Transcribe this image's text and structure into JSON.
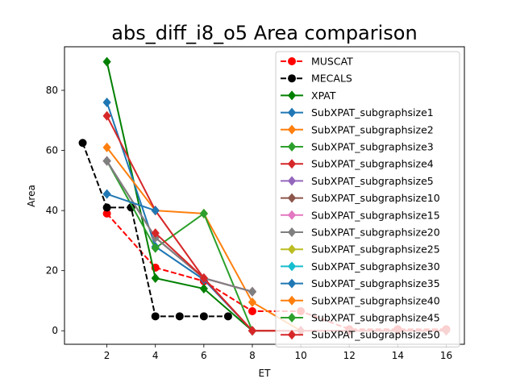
{
  "chart_data": {
    "type": "line",
    "title": "abs_diff_i8_o5 Area comparison",
    "xlabel": "ET",
    "ylabel": "Area",
    "xlim": [
      0.25,
      16.75
    ],
    "ylim": [
      -4.5,
      94.5
    ],
    "xticks": [
      2,
      4,
      6,
      8,
      10,
      12,
      14,
      16
    ],
    "yticks": [
      0,
      20,
      40,
      60,
      80
    ],
    "grid": false,
    "legend_position": "upper right",
    "series": [
      {
        "name": "MUSCAT",
        "color": "#ff0000",
        "dash": "dashed",
        "marker": "circle",
        "x": [
          2,
          4,
          6,
          8,
          10,
          12,
          14,
          16
        ],
        "y": [
          39,
          21,
          16.5,
          6.5,
          6.5,
          0.5,
          0.5,
          0.5
        ]
      },
      {
        "name": "MECALS",
        "color": "#000000",
        "dash": "dashed",
        "marker": "circle",
        "x": [
          1,
          2,
          3,
          4,
          5,
          6,
          7
        ],
        "y": [
          62.5,
          41,
          41,
          4.8,
          4.8,
          4.8,
          4.8
        ]
      },
      {
        "name": "XPAT",
        "color": "#008000",
        "dash": "solid",
        "marker": "diamond",
        "x": [
          2,
          4,
          6,
          8
        ],
        "y": [
          89.5,
          17.5,
          14,
          0
        ]
      },
      {
        "name": "SubXPAT_subgraphsize1",
        "color": "#1f77b4",
        "dash": "solid",
        "marker": "diamond",
        "x": [
          2,
          4,
          6,
          8
        ],
        "y": [
          76,
          28,
          17,
          0
        ]
      },
      {
        "name": "SubXPAT_subgraphsize2",
        "color": "#ff7f0e",
        "dash": "solid",
        "marker": "diamond",
        "x": [
          2,
          4,
          6,
          8,
          10
        ],
        "y": [
          61,
          40,
          39,
          9.5,
          0
        ]
      },
      {
        "name": "SubXPAT_subgraphsize3",
        "color": "#2ca02c",
        "dash": "solid",
        "marker": "diamond",
        "x": [
          2,
          4,
          6,
          8,
          10
        ],
        "y": [
          56.5,
          27.5,
          39,
          0,
          0
        ]
      },
      {
        "name": "SubXPAT_subgraphsize4",
        "color": "#d62728",
        "dash": "solid",
        "marker": "diamond",
        "x": [
          2,
          4,
          6,
          8,
          10,
          12,
          14,
          16
        ],
        "y": [
          71.5,
          40,
          17.5,
          0,
          0,
          0,
          0,
          0
        ]
      },
      {
        "name": "SubXPAT_subgraphsize5",
        "color": "#9467bd",
        "dash": "solid",
        "marker": "diamond",
        "x": [
          2,
          4,
          6,
          8
        ],
        "y": [
          56.5,
          31,
          17.5,
          13
        ]
      },
      {
        "name": "SubXPAT_subgraphsize10",
        "color": "#8c564b",
        "dash": "solid",
        "marker": "diamond",
        "x": [
          2,
          4,
          6,
          8
        ],
        "y": [
          56.5,
          31,
          17.5,
          13
        ]
      },
      {
        "name": "SubXPAT_subgraphsize15",
        "color": "#e377c2",
        "dash": "solid",
        "marker": "diamond",
        "x": [
          2,
          4,
          6,
          8
        ],
        "y": [
          56.5,
          31,
          17.5,
          13
        ]
      },
      {
        "name": "SubXPAT_subgraphsize20",
        "color": "#7f7f7f",
        "dash": "solid",
        "marker": "diamond",
        "x": [
          2,
          4,
          6,
          8
        ],
        "y": [
          56.5,
          31,
          17.5,
          13
        ]
      },
      {
        "name": "SubXPAT_subgraphsize25",
        "color": "#bcbd22",
        "dash": "solid",
        "marker": "diamond",
        "x": [],
        "y": []
      },
      {
        "name": "SubXPAT_subgraphsize30",
        "color": "#17becf",
        "dash": "solid",
        "marker": "diamond",
        "x": [],
        "y": []
      },
      {
        "name": "SubXPAT_subgraphsize35",
        "color": "#1f77b4",
        "dash": "solid",
        "marker": "diamond",
        "x": [
          2,
          4
        ],
        "y": [
          45.5,
          40
        ]
      },
      {
        "name": "SubXPAT_subgraphsize40",
        "color": "#ff7f0e",
        "dash": "solid",
        "marker": "diamond",
        "x": [],
        "y": []
      },
      {
        "name": "SubXPAT_subgraphsize45",
        "color": "#2ca02c",
        "dash": "solid",
        "marker": "diamond",
        "x": [],
        "y": []
      },
      {
        "name": "SubXPAT_subgraphsize50",
        "color": "#d62728",
        "dash": "solid",
        "marker": "diamond",
        "x": [
          4,
          6,
          8,
          10,
          12,
          14,
          16
        ],
        "y": [
          32.5,
          17.5,
          0,
          0,
          0,
          0,
          0
        ]
      }
    ]
  }
}
